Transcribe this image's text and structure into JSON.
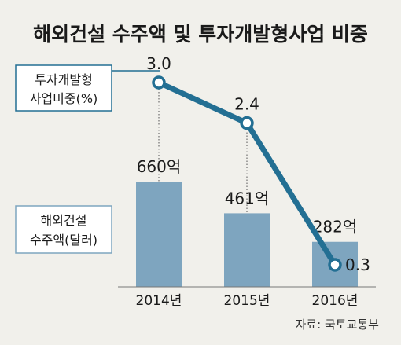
{
  "chart_data": {
    "type": "bar",
    "title": "해외건설 수주액 및 투자개발형사업 비중",
    "categories": [
      "2014년",
      "2015년",
      "2016년"
    ],
    "series": [
      {
        "name": "해외건설 수주액(달러)",
        "type": "bar",
        "values": [
          660,
          461,
          282
        ],
        "labels": [
          "660억",
          "461억",
          "282억"
        ],
        "color": "#7ea5bf"
      },
      {
        "name": "투자개발형 사업비중(%)",
        "type": "line",
        "values": [
          3.0,
          2.4,
          0.3
        ],
        "labels": [
          "3.0",
          "2.4",
          "0.3"
        ],
        "color": "#236f93"
      }
    ],
    "legend": {
      "line_lines": [
        "투자개발형",
        "사업비중(%)"
      ],
      "bar_lines": [
        "해외건설",
        "수주액(달러)"
      ]
    },
    "bar_ylim": [
      0,
      660
    ],
    "line_ylim": [
      0,
      3.0
    ],
    "grid": false,
    "source": "자료: 국토교통부"
  }
}
